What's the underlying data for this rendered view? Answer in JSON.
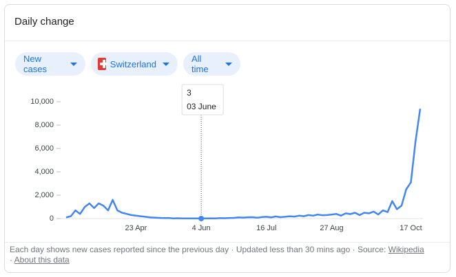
{
  "header": {
    "title": "Daily change"
  },
  "filters": {
    "metric": "New cases",
    "location": "Switzerland",
    "period": "All time"
  },
  "chart_data": {
    "type": "line",
    "categories": [
      null,
      null,
      null,
      null,
      null,
      null,
      null,
      null,
      null,
      null,
      null,
      null,
      null,
      null,
      null,
      "23 Apr",
      null,
      null,
      null,
      null,
      null,
      null,
      null,
      null,
      null,
      null,
      null,
      null,
      null,
      "4 Jun",
      null,
      null,
      null,
      null,
      null,
      null,
      null,
      null,
      null,
      null,
      null,
      null,
      null,
      "16 Jul",
      null,
      null,
      null,
      null,
      null,
      null,
      null,
      null,
      null,
      null,
      null,
      null,
      null,
      "27 Aug",
      null,
      null,
      null,
      null,
      null,
      null,
      null,
      null,
      null,
      null,
      null,
      null,
      null,
      null,
      null,
      null,
      "17 Oct",
      null,
      null
    ],
    "series": [
      {
        "name": "New cases",
        "color": "#4285f4",
        "values": [
          100,
          200,
          700,
          400,
          1000,
          1300,
          900,
          1300,
          1100,
          700,
          1600,
          700,
          500,
          400,
          300,
          250,
          200,
          150,
          100,
          80,
          60,
          40,
          50,
          20,
          30,
          20,
          15,
          20,
          10,
          15,
          20,
          25,
          20,
          40,
          30,
          50,
          60,
          100,
          80,
          110,
          120,
          70,
          130,
          150,
          100,
          180,
          120,
          150,
          200,
          170,
          250,
          200,
          300,
          250,
          350,
          280,
          300,
          350,
          400,
          250,
          450,
          380,
          500,
          300,
          500,
          450,
          600,
          350,
          700,
          550,
          1500,
          800,
          1100,
          2500,
          3100,
          6600,
          9400
        ]
      }
    ],
    "ylim": [
      0,
      10000
    ],
    "yticks": [
      0,
      {
        "value": 2000,
        "label": "2,000"
      },
      {
        "value": 4000,
        "label": "4,000"
      },
      {
        "value": 6000,
        "label": "6,000"
      },
      {
        "value": 8000,
        "label": "8,000"
      },
      {
        "value": 10000,
        "label": "10,000"
      }
    ],
    "grid": false,
    "tooltip": {
      "value": 3,
      "label": "03 June"
    }
  },
  "footer": {
    "note": "Each day shows new cases reported since the previous day · Updated less than 30 mins ago · Source:",
    "source": "Wikipedia",
    "separator": "·",
    "about": "About this data"
  }
}
